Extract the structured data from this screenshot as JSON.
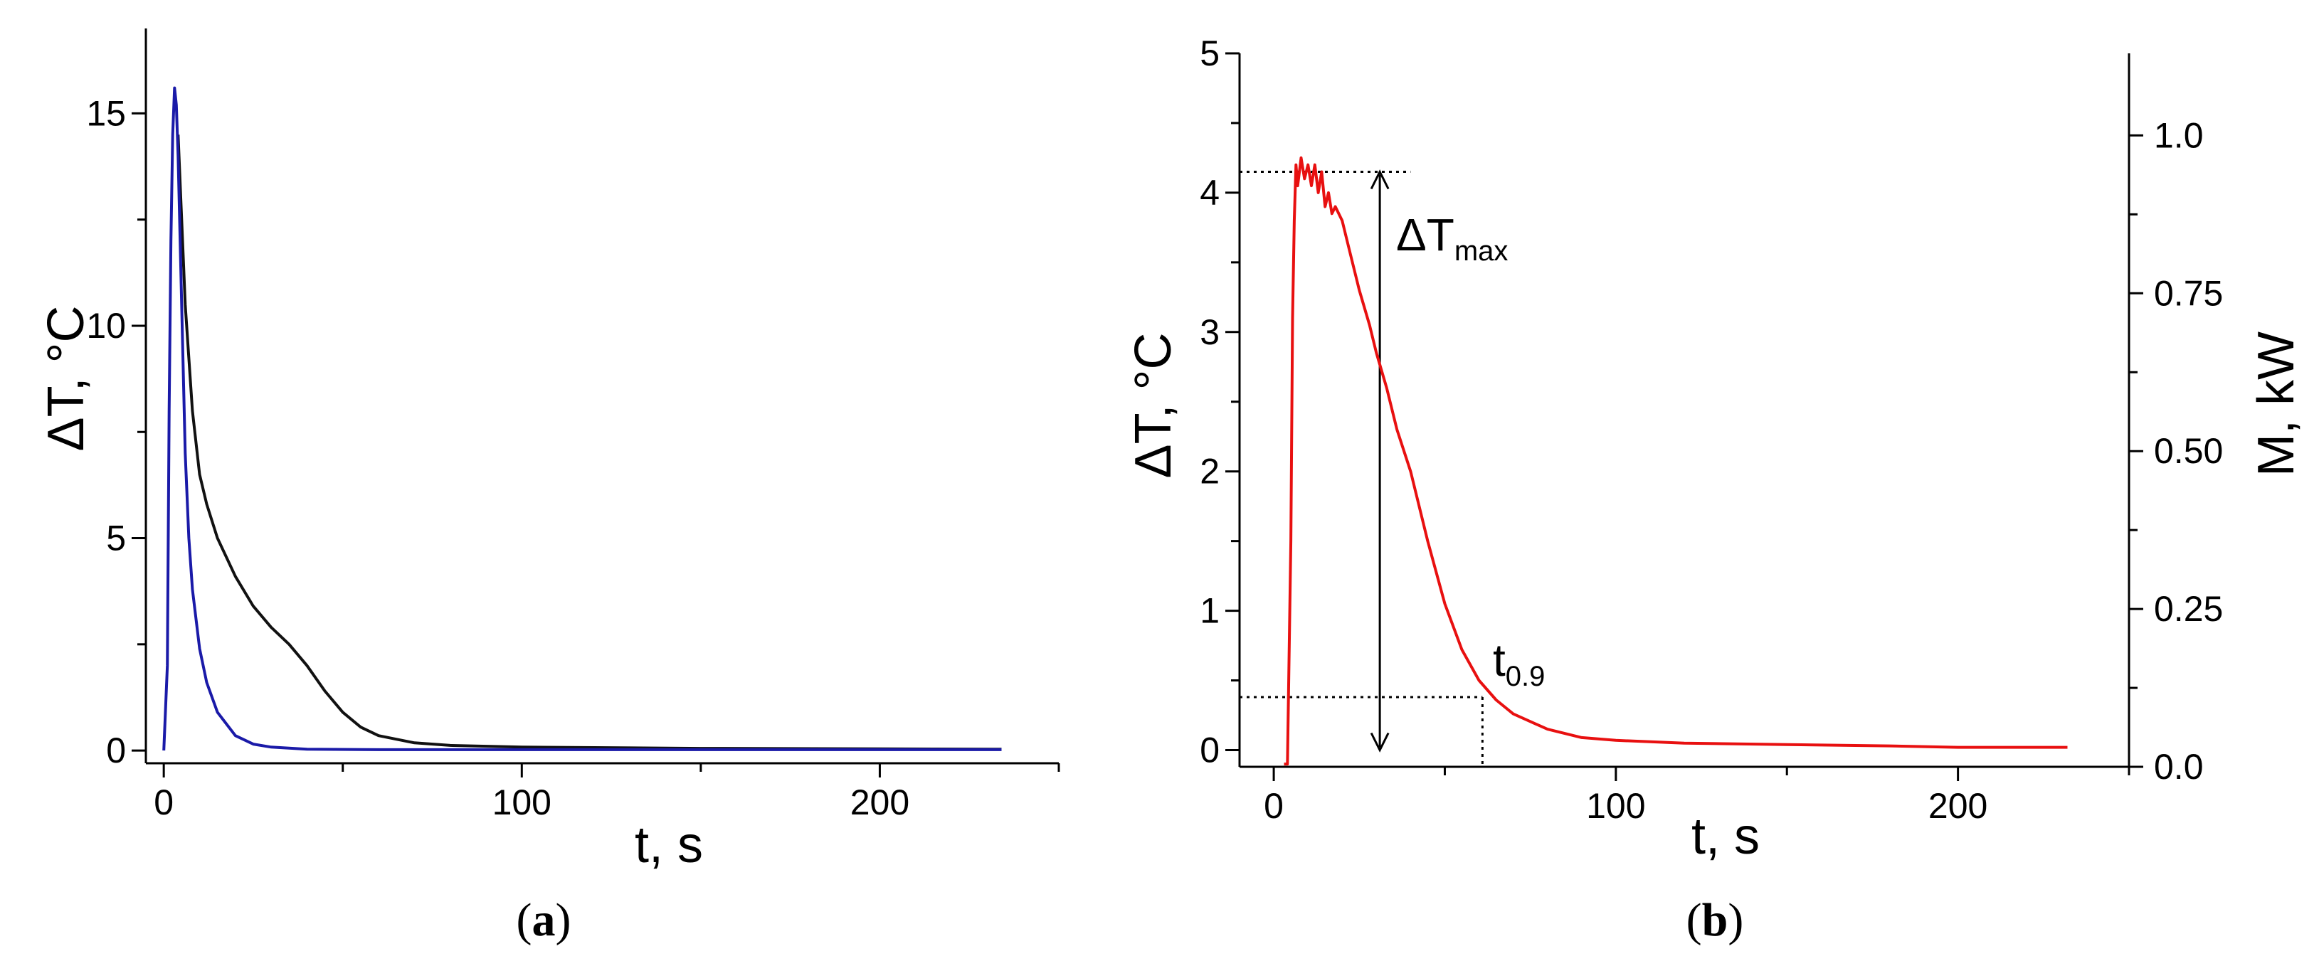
{
  "chart_data": [
    {
      "panel": "a",
      "panel_label": "(a)",
      "panel_letter": "a",
      "type": "line",
      "xlabel": "t, s",
      "ylabel": "ΔT, °C",
      "xlim": [
        -5,
        250
      ],
      "ylim": [
        -0.3,
        17
      ],
      "x_ticks": [
        0,
        100,
        200
      ],
      "y_ticks": [
        0,
        5,
        10,
        15
      ],
      "grid": false,
      "legend": "none",
      "series": [
        {
          "color": "#1a1aa8",
          "x": [
            0,
            1,
            1.5,
            2,
            2.5,
            3,
            3.5,
            4,
            5,
            6,
            7,
            8,
            10,
            12,
            15,
            20,
            25,
            30,
            40,
            60,
            100,
            150,
            200,
            234
          ],
          "y": [
            0,
            2,
            8,
            12,
            14.5,
            15.6,
            15.2,
            14,
            10.5,
            7,
            5,
            3.8,
            2.4,
            1.6,
            0.9,
            0.35,
            0.15,
            0.08,
            0.03,
            0.02,
            0.02,
            0.02,
            0.02,
            0.02
          ]
        },
        {
          "color": "#111111",
          "x": [
            4,
            5,
            6,
            8,
            10,
            12,
            15,
            20,
            25,
            30,
            35,
            40,
            45,
            50,
            55,
            60,
            70,
            80,
            100,
            150,
            200,
            234
          ],
          "y": [
            14.5,
            12.5,
            10.5,
            8,
            6.5,
            5.8,
            5,
            4.1,
            3.4,
            2.9,
            2.5,
            2.0,
            1.4,
            0.9,
            0.55,
            0.35,
            0.18,
            0.12,
            0.08,
            0.05,
            0.04,
            0.03
          ]
        }
      ]
    },
    {
      "panel": "b",
      "panel_label": "(b)",
      "panel_letter": "b",
      "type": "line",
      "xlabel": "t, s",
      "ylabel": "ΔT, °C",
      "y2label": "M, kW",
      "xlim": [
        -10,
        250
      ],
      "ylim": [
        -0.12,
        5
      ],
      "y2lim": [
        0,
        1.13
      ],
      "x_ticks": [
        0,
        100,
        200
      ],
      "y_ticks": [
        0,
        1,
        2,
        3,
        4,
        5
      ],
      "y2_ticks": [
        "0.0",
        "0.25",
        "0.50",
        "0.75",
        "1.0"
      ],
      "grid": false,
      "legend": "none",
      "annotations": {
        "dt_max_main": "ΔT",
        "dt_max_sub": "max",
        "t09_main": "t",
        "t09_sub": "0.9",
        "dt_max_value": 4.15,
        "t09_value": 61,
        "t09_level": 0.38,
        "arrow_x": 31
      },
      "series": [
        {
          "color": "#e81010",
          "x": [
            3,
            4,
            5,
            5.5,
            6,
            6.5,
            7,
            8,
            9,
            10,
            11,
            12,
            13,
            14,
            15,
            16,
            17,
            18,
            20,
            22,
            25,
            28,
            30,
            33,
            36,
            40,
            45,
            50,
            55,
            60,
            65,
            70,
            80,
            90,
            100,
            120,
            150,
            180,
            200,
            220,
            232
          ],
          "y": [
            -0.1,
            -0.1,
            1.5,
            3.1,
            3.8,
            4.2,
            4.05,
            4.25,
            4.1,
            4.2,
            4.05,
            4.2,
            4.0,
            4.15,
            3.9,
            4.0,
            3.85,
            3.9,
            3.8,
            3.6,
            3.3,
            3.05,
            2.85,
            2.6,
            2.3,
            2.0,
            1.5,
            1.05,
            0.72,
            0.5,
            0.36,
            0.26,
            0.15,
            0.09,
            0.07,
            0.05,
            0.04,
            0.03,
            0.02,
            0.02,
            0.02
          ]
        }
      ]
    }
  ]
}
